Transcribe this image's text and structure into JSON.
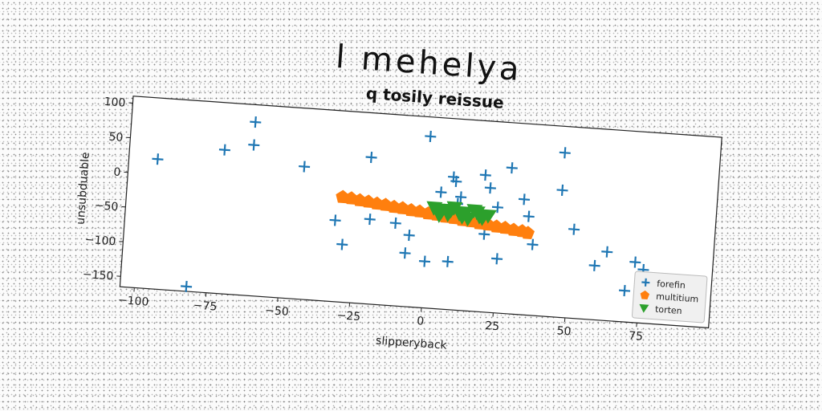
{
  "page_title": "l mehelya",
  "chart_data": {
    "type": "scatter",
    "title": "q tosily reissue",
    "xlabel": "slipperyback",
    "ylabel": "unsubduable",
    "xlim": [
      -105,
      100
    ],
    "ylim": [
      -165,
      110
    ],
    "xticks": [
      -100,
      -75,
      -50,
      -25,
      0,
      25,
      50,
      75
    ],
    "yticks": [
      100,
      50,
      0,
      -50,
      -100,
      -150
    ],
    "xtick_labels": [
      "−100",
      "−75",
      "−50",
      "−25",
      "0",
      "25",
      "50",
      "75"
    ],
    "ytick_labels": [
      "100",
      "50",
      "0",
      "−50",
      "−100",
      "−150"
    ],
    "grid": false,
    "legend_position": "bottom-right",
    "series": [
      {
        "name": "forefin",
        "marker": "plus",
        "color": "#1f77b4",
        "x": [
          -95,
          -82,
          -72,
          -62,
          -62,
          -44,
          -32,
          -21,
          -20,
          -29,
          -11,
          -6,
          -7,
          -1,
          0,
          4,
          8,
          8,
          9,
          10,
          11,
          19,
          20,
          21,
          24,
          25,
          28,
          33,
          35,
          37,
          46,
          46,
          51,
          59,
          63,
          70,
          73,
          76,
          85,
          88
        ],
        "y": [
          22,
          -158,
          42,
          85,
          52,
          26,
          -48,
          46,
          -43,
          -82,
          -46,
          -62,
          -88,
          82,
          -98,
          3,
          -96,
          26,
          20,
          -12,
          -2,
          32,
          -53,
          14,
          -13,
          -87,
          45,
          1,
          -23,
          -63,
          72,
          18,
          -37,
          -87,
          -66,
          -120,
          -78,
          -88,
          -148,
          -148
        ]
      },
      {
        "name": "multitium",
        "marker": "pentagon",
        "color": "#ff7f0e",
        "x": [
          -30,
          -27,
          -24,
          -21,
          -18,
          -15,
          -12,
          -9,
          -6,
          -3,
          0,
          3,
          6,
          9,
          12,
          15,
          18,
          21,
          24,
          27,
          30,
          33,
          35
        ],
        "y": [
          -14,
          -15,
          -17,
          -18,
          -20,
          -21,
          -23,
          -24,
          -26,
          -27,
          -29,
          -30,
          -32,
          -33,
          -35,
          -36,
          -38,
          -39,
          -41,
          -42,
          -44,
          -45,
          -47
        ]
      },
      {
        "name": "torten",
        "marker": "triangle-down",
        "color": "#2ca02c",
        "x": [
          2,
          5,
          7,
          9,
          11,
          13,
          14,
          17,
          19,
          4,
          8,
          12,
          16,
          18,
          21
        ],
        "y": [
          -20,
          -22,
          -28,
          -18,
          -26,
          -24,
          -32,
          -22,
          -30,
          -30,
          -22,
          -30,
          -20,
          -28,
          -26
        ]
      }
    ]
  }
}
